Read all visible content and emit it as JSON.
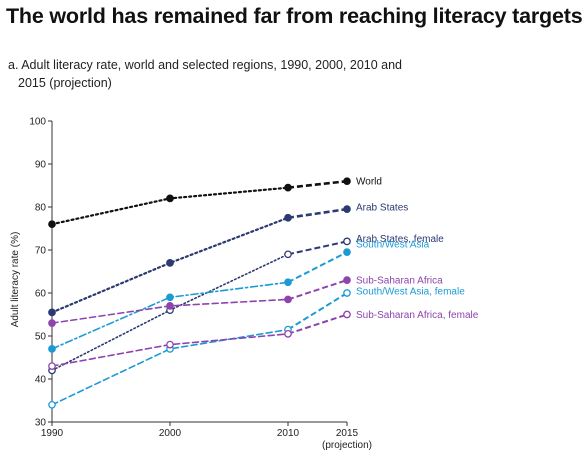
{
  "header": {
    "title": "The world has remained far from reaching literacy targets",
    "subtitle_line1": "a. Adult literacy rate, world and selected regions, 1990, 2000, 2010 and",
    "subtitle_line2": "2015 (projection)"
  },
  "chart_data": {
    "type": "line",
    "title": "a. Adult literacy rate, world and selected regions, 1990, 2000, 2010 and 2015 (projection)",
    "xlabel": "",
    "ylabel": "Adult literacy rate (%)",
    "x": [
      1990,
      2000,
      2010,
      2015
    ],
    "x_tick_labels": [
      "1990",
      "2000",
      "2010",
      "2015"
    ],
    "x_tick_note": "(projection)",
    "ylim": [
      30,
      100
    ],
    "yticks": [
      30,
      40,
      50,
      60,
      70,
      80,
      90,
      100
    ],
    "grid": false,
    "legend": "labels at line ends (right)",
    "series": [
      {
        "name": "World",
        "values": [
          76,
          82,
          84.5,
          86
        ],
        "color": "#111111",
        "marker": "filled",
        "style": "dotted"
      },
      {
        "name": "Arab States",
        "values": [
          55.5,
          67,
          77.5,
          79.5
        ],
        "color": "#2b3a73",
        "marker": "filled",
        "style": "dotted"
      },
      {
        "name": "Arab States, female",
        "values": [
          42,
          56,
          69,
          72
        ],
        "color": "#2b3a73",
        "marker": "open",
        "style": "fine-dotted"
      },
      {
        "name": "South/West Asia",
        "values": [
          47,
          59,
          62.5,
          69.5
        ],
        "color": "#1b9ad6",
        "marker": "filled",
        "style": "dash-dot"
      },
      {
        "name": "Sub-Saharan Africa",
        "values": [
          53,
          57,
          58.5,
          63
        ],
        "color": "#8e44ad",
        "marker": "filled",
        "style": "dashed"
      },
      {
        "name": "South/West Asia, female",
        "values": [
          34,
          47,
          51.5,
          60
        ],
        "color": "#1b9ad6",
        "marker": "open",
        "style": "dashed"
      },
      {
        "name": "Sub-Saharan Africa, female",
        "values": [
          43,
          48,
          50.5,
          55
        ],
        "color": "#8e44ad",
        "marker": "open",
        "style": "dashed"
      }
    ]
  }
}
